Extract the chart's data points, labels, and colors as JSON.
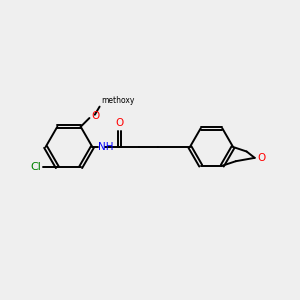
{
  "background_color": "#efefef",
  "bond_color": "#000000",
  "cl_color": "#008000",
  "o_color": "#ff0000",
  "n_color": "#0000ff",
  "figsize": [
    3.0,
    3.0
  ],
  "dpi": 100,
  "bond_lw": 1.4,
  "font_size": 7.5,
  "xlim": [
    0,
    10
  ],
  "ylim": [
    0,
    10
  ]
}
